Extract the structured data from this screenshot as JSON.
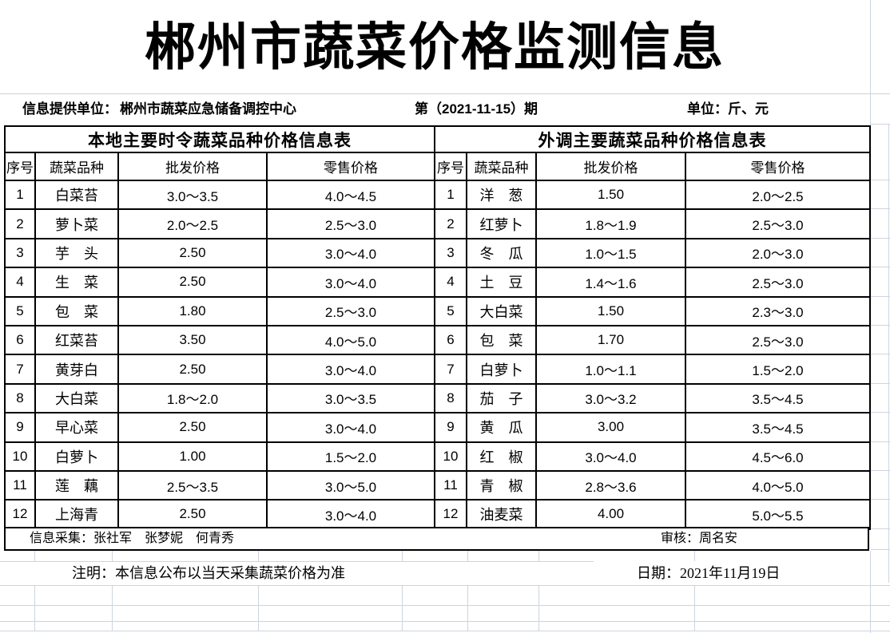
{
  "title": "郴州市蔬菜价格监测信息",
  "meta": {
    "provider_label": "信息提供单位：",
    "provider_value": "郴州市蔬菜应急储备调控中心",
    "issue": "第（2021-11-15）期",
    "unit": "单位：斤、元"
  },
  "tables": [
    {
      "title": "本地主要时令蔬菜品种价格信息表",
      "headers": [
        "序号",
        "蔬菜品种",
        "批发价格",
        "零售价格"
      ],
      "rows": [
        [
          "1",
          "白菜苔",
          "3.0～3.5",
          "4.0～4.5"
        ],
        [
          "2",
          "萝卜菜",
          "2.0～2.5",
          "2.5～3.0"
        ],
        [
          "3",
          "芋　头",
          "2.50",
          "3.0～4.0"
        ],
        [
          "4",
          "生　菜",
          "2.50",
          "3.0～4.0"
        ],
        [
          "5",
          "包　菜",
          "1.80",
          "2.5～3.0"
        ],
        [
          "6",
          "红菜苔",
          "3.50",
          "4.0～5.0"
        ],
        [
          "7",
          "黄芽白",
          "2.50",
          "3.0～4.0"
        ],
        [
          "8",
          "大白菜",
          "1.8～2.0",
          "3.0～3.5"
        ],
        [
          "9",
          "早心菜",
          "2.50",
          "3.0～4.0"
        ],
        [
          "10",
          "白萝卜",
          "1.00",
          "1.5～2.0"
        ],
        [
          "11",
          "莲　藕",
          "2.5～3.5",
          "3.0～5.0"
        ],
        [
          "12",
          "上海青",
          "2.50",
          "3.0～4.0"
        ]
      ]
    },
    {
      "title": "外调主要蔬菜品种价格信息表",
      "headers": [
        "序号",
        "蔬菜品种",
        "批发价格",
        "零售价格"
      ],
      "rows": [
        [
          "1",
          "洋　葱",
          "1.50",
          "2.0～2.5"
        ],
        [
          "2",
          "红萝卜",
          "1.8～1.9",
          "2.5～3.0"
        ],
        [
          "3",
          "冬　瓜",
          "1.0～1.5",
          "2.0～3.0"
        ],
        [
          "4",
          "土　豆",
          "1.4～1.6",
          "2.5～3.0"
        ],
        [
          "5",
          "大白菜",
          "1.50",
          "2.3～3.0"
        ],
        [
          "6",
          "包　菜",
          "1.70",
          "2.5～3.0"
        ],
        [
          "7",
          "白萝卜",
          "1.0～1.1",
          "1.5～2.0"
        ],
        [
          "8",
          "茄　子",
          "3.0～3.2",
          "3.5～4.5"
        ],
        [
          "9",
          "黄　瓜",
          "3.00",
          "3.5～4.5"
        ],
        [
          "10",
          "红　椒",
          "3.0～4.0",
          "4.5～6.0"
        ],
        [
          "11",
          "青　椒",
          "2.8～3.6",
          "4.0～5.0"
        ],
        [
          "12",
          "油麦菜",
          "4.00",
          "5.0～5.5"
        ]
      ]
    }
  ],
  "footer": {
    "collectors": "信息采集：张社军　张梦妮　何青秀",
    "reviewer": "审核：周名安",
    "note": "注明：本信息公布以当天采集蔬菜价格为准",
    "date": "日期：2021年11月19日"
  },
  "colors": {
    "border": "#000000",
    "gridline": "#cdd4e0",
    "text": "#000000"
  }
}
